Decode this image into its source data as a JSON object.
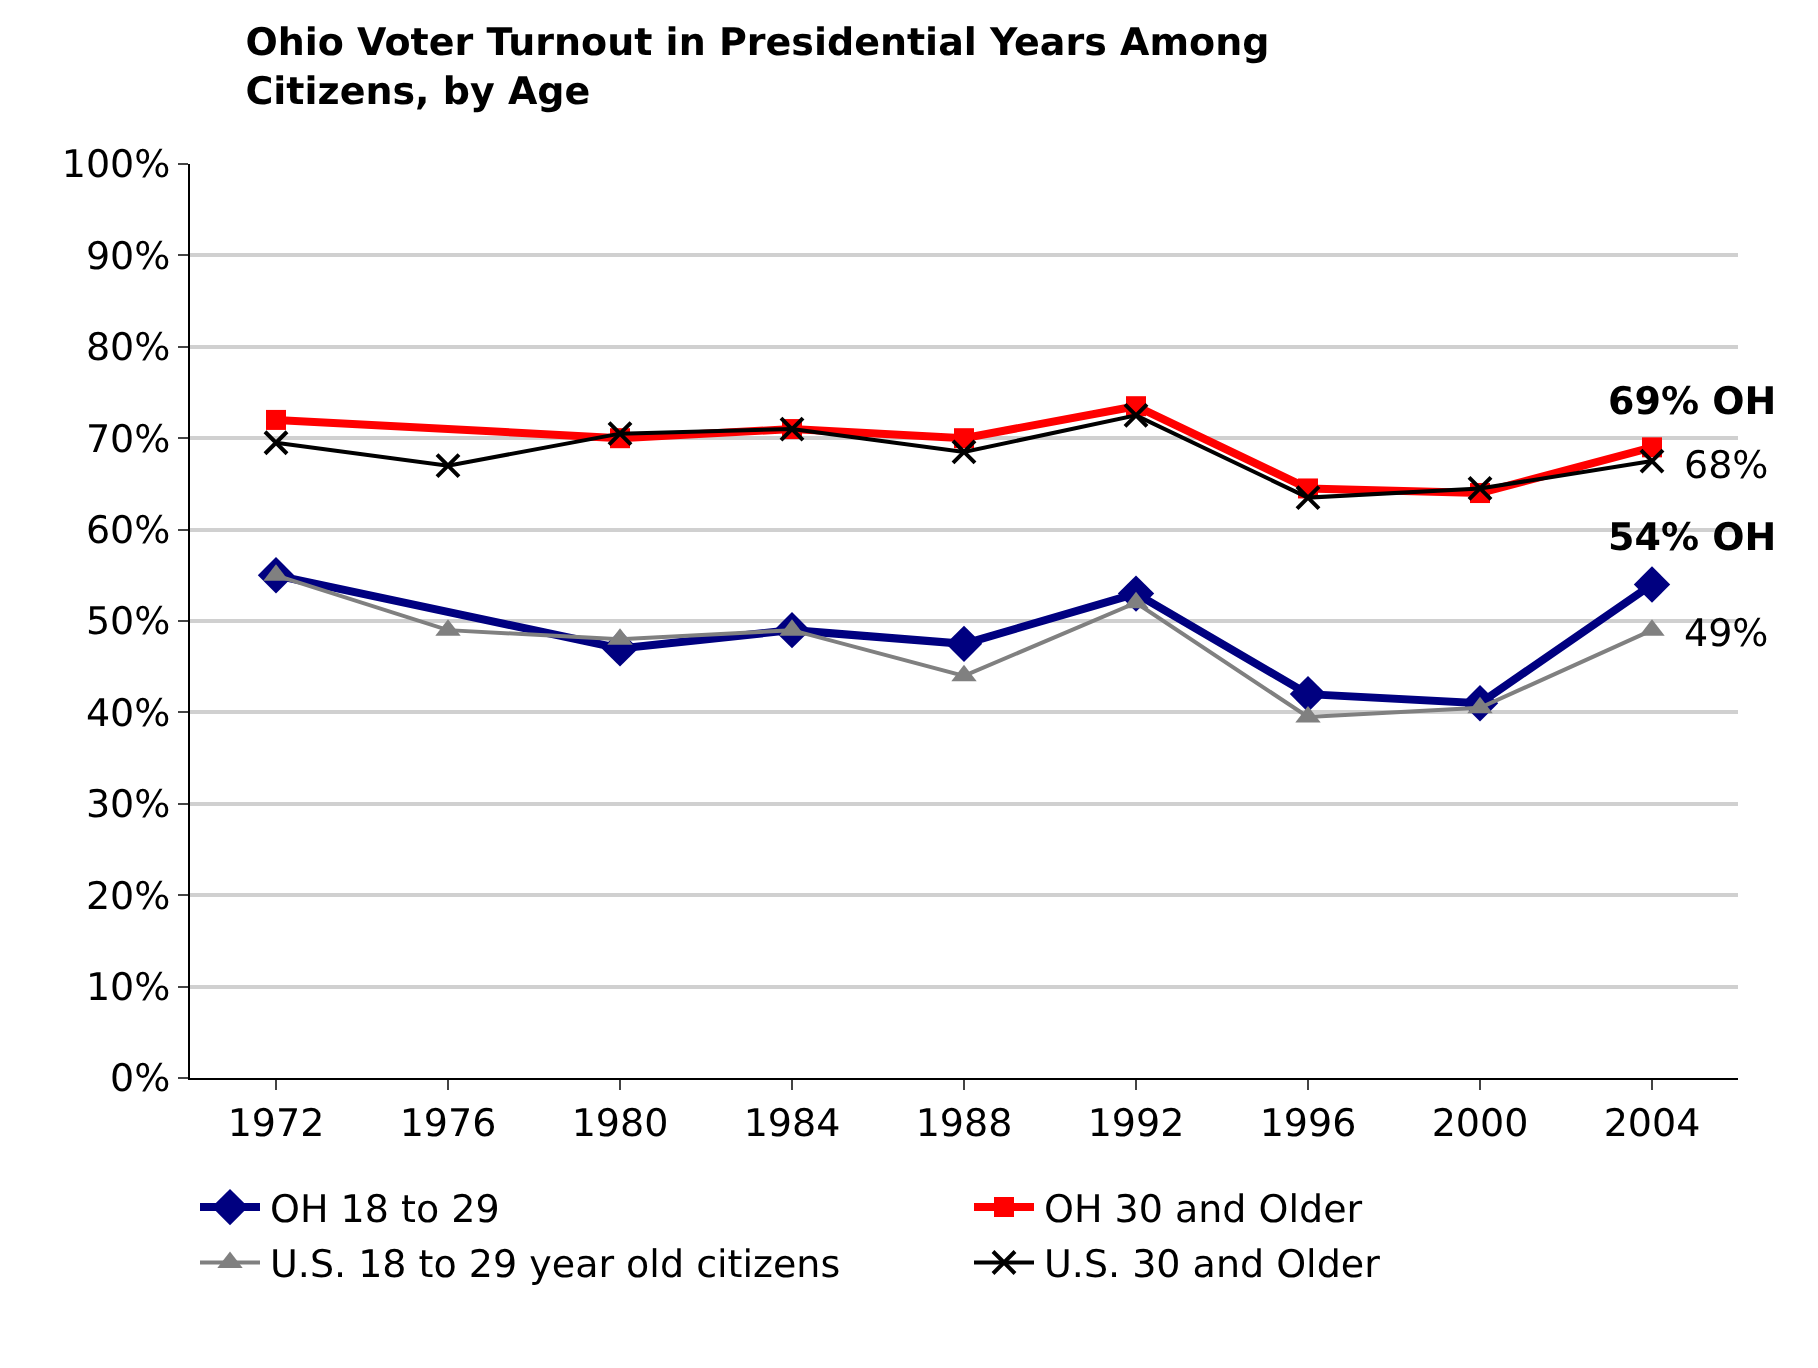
{
  "chart_data": {
    "type": "line",
    "title": "Ohio Voter Turnout in Presidential Years Among Citizens, by Age",
    "categories": [
      "1972",
      "1976",
      "1980",
      "1984",
      "1988",
      "1992",
      "1996",
      "2000",
      "2004"
    ],
    "series": [
      {
        "name": "OH 18 to 29",
        "color": "#000080",
        "marker": "diamond",
        "values": [
          55,
          null,
          47,
          49,
          47.5,
          53,
          42,
          41,
          54
        ]
      },
      {
        "name": "OH 30 and Older",
        "color": "#ff0000",
        "marker": "square",
        "values": [
          72,
          null,
          70,
          71,
          70,
          73.5,
          64.5,
          64,
          69
        ]
      },
      {
        "name": "U.S. 18 to 29 year old citizens",
        "color": "#808080",
        "marker": "triangle",
        "values": [
          55,
          49,
          48,
          49,
          44,
          52,
          39.5,
          40.5,
          49
        ]
      },
      {
        "name": "U.S. 30 and Older",
        "color": "#000000",
        "marker": "cross",
        "values": [
          69.5,
          67,
          70.5,
          71,
          68.5,
          72.5,
          63.5,
          64.5,
          67.5
        ]
      }
    ],
    "ylim": [
      0,
      100
    ],
    "yticks": [
      {
        "value": 0,
        "label": "0%"
      },
      {
        "value": 10,
        "label": "10%"
      },
      {
        "value": 20,
        "label": "20%"
      },
      {
        "value": 30,
        "label": "30%"
      },
      {
        "value": 40,
        "label": "40%"
      },
      {
        "value": 50,
        "label": "50%"
      },
      {
        "value": 60,
        "label": "60%"
      },
      {
        "value": 70,
        "label": "70%"
      },
      {
        "value": 80,
        "label": "80%"
      },
      {
        "value": 90,
        "label": "90%"
      },
      {
        "value": 100,
        "label": "100%"
      }
    ],
    "grid": "y",
    "legend": "bottom",
    "annotations": [
      {
        "text": "69% OH",
        "x": "2004",
        "y": 69
      },
      {
        "text": "68%",
        "x": "2004",
        "y": 67.5
      },
      {
        "text": "54% OH",
        "x": "2004",
        "y": 54
      },
      {
        "text": "49%",
        "x": "2004",
        "y": 49
      }
    ]
  }
}
